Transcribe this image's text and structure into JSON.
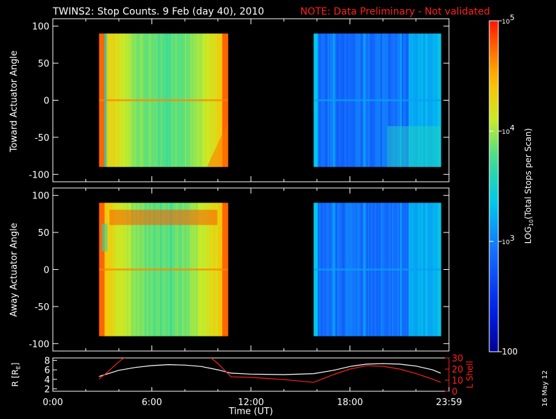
{
  "title": "TWINS2: Stop Counts.  9 Feb (day  40), 2010",
  "note": "NOTE: Data Preliminary - Not validated",
  "date_stamp": "16 May 12",
  "colorbar": {
    "label_prefix": "LOG",
    "label_sub": "10",
    "label_rest": "(Total Stops per Scan)",
    "ticks": [
      {
        "value": 100000,
        "base": "10",
        "exp": "5"
      },
      {
        "value": 10000,
        "base": "10",
        "exp": "4"
      },
      {
        "value": 1000,
        "base": "10",
        "exp": "3"
      },
      {
        "value": 100,
        "base": "100",
        "exp": ""
      }
    ],
    "range": [
      100,
      100000
    ],
    "scale": "log"
  },
  "chart_data": [
    {
      "type": "heatmap",
      "panel": "toward",
      "ylabel": "Toward Actuator Angle",
      "xlim": [
        0,
        24
      ],
      "ylim": [
        -110,
        110
      ],
      "yticks": [
        -100,
        -50,
        0,
        50,
        100
      ],
      "data_range": {
        "x": [
          2.8,
          10.6
        ],
        "y": [
          -90,
          90
        ]
      },
      "segments": [
        {
          "x_start": 2.8,
          "x_end": 10.6,
          "level": "high (~10^4)"
        },
        {
          "x_start": 15.8,
          "x_end": 23.5,
          "level": "low (~10^2 - 10^3)"
        }
      ]
    },
    {
      "type": "heatmap",
      "panel": "away",
      "ylabel": "Away Actuator Angle",
      "xlim": [
        0,
        24
      ],
      "ylim": [
        -110,
        110
      ],
      "yticks": [
        -100,
        -50,
        0,
        50,
        100
      ],
      "data_range": {
        "x": [
          2.8,
          10.6
        ],
        "y": [
          -90,
          90
        ]
      },
      "segments": [
        {
          "x_start": 2.8,
          "x_end": 10.6,
          "level": "high (~10^4)"
        },
        {
          "x_start": 15.8,
          "x_end": 23.5,
          "level": "low (~10^2 - 10^3)"
        }
      ]
    },
    {
      "type": "line",
      "panel": "orbit",
      "ylabel": "R [R",
      "ylabel_sub": "E",
      "ylabel_end": "]",
      "y2label": "L Shell",
      "xlabel": "Time (UT)",
      "xlim": [
        0,
        24
      ],
      "ylim": [
        1.5,
        8.5
      ],
      "y2lim": [
        0,
        30
      ],
      "xtick_labels": [
        {
          "value": 0,
          "label": "0:00"
        },
        {
          "value": 6,
          "label": "6:00"
        },
        {
          "value": 12,
          "label": "12:00"
        },
        {
          "value": 18,
          "label": "18:00"
        },
        {
          "value": 24,
          "label": "23:59"
        }
      ],
      "yticks": [
        2,
        4,
        6,
        8
      ],
      "y2ticks": [
        0,
        10,
        20,
        30
      ],
      "series": [
        {
          "color": "#ffffff",
          "axis": "left",
          "x": [
            2.8,
            4,
            5,
            6,
            7,
            8,
            9,
            10,
            10.8,
            12,
            14,
            15.8,
            17,
            18,
            19,
            20,
            21,
            22,
            23,
            23.5
          ],
          "y": [
            4.6,
            5.9,
            6.5,
            6.9,
            7.1,
            7.0,
            6.7,
            6.0,
            5.3,
            5.1,
            5.0,
            5.2,
            5.9,
            6.7,
            7.2,
            7.3,
            7.2,
            6.8,
            6.0,
            5.3
          ]
        },
        {
          "color": "#ff2020",
          "axis": "right",
          "x": [
            2.8,
            3.3,
            3.8,
            4.2,
            4.5,
            null,
            9.5,
            10,
            10.8,
            12,
            13,
            14,
            15.8,
            17,
            18,
            19,
            20,
            21,
            22,
            23,
            23.5
          ],
          "y": [
            11,
            17,
            24,
            29,
            31,
            null,
            31,
            25,
            13,
            12.5,
            11.5,
            10.5,
            8,
            15,
            20,
            23,
            22.5,
            20,
            16,
            11,
            8
          ]
        }
      ]
    }
  ]
}
